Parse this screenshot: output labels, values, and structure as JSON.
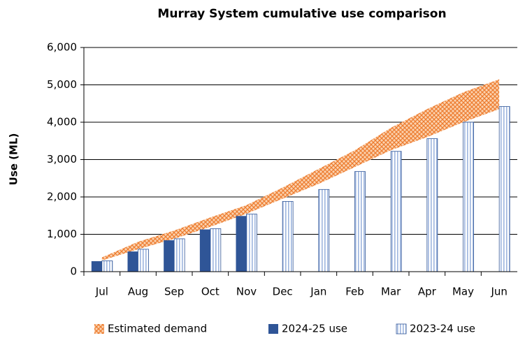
{
  "chart_data": {
    "type": "bar",
    "title": "Murray System cumulative use comparison",
    "y_label": "Use  (ML)",
    "categories": [
      "Jul",
      "Aug",
      "Sep",
      "Oct",
      "Nov",
      "Dec",
      "Jan",
      "Feb",
      "Mar",
      "Apr",
      "May",
      "Jun"
    ],
    "band": {
      "name": "Estimated demand",
      "color": "#f4a460",
      "low": [
        300,
        600,
        880,
        1200,
        1550,
        1950,
        2350,
        2800,
        3250,
        3600,
        4000,
        4350
      ],
      "high": [
        380,
        800,
        1100,
        1450,
        1780,
        2250,
        2750,
        3250,
        3850,
        4350,
        4800,
        5150
      ]
    },
    "series": [
      {
        "name": "2024-25 use",
        "color": "#2f5597",
        "values": [
          280,
          540,
          840,
          1130,
          1490,
          null,
          null,
          null,
          null,
          null,
          null,
          null
        ]
      },
      {
        "name": "2023-24 use",
        "color": "#dae3f3",
        "values": [
          290,
          600,
          880,
          1150,
          1540,
          1880,
          2200,
          2680,
          3220,
          3560,
          4000,
          4420
        ]
      }
    ],
    "ylim": [
      0,
      6000
    ],
    "yticks": [
      0,
      {
        "value": 1000,
        "label": "1,000"
      },
      {
        "value": 2000,
        "label": "2,000"
      },
      {
        "value": 3000,
        "label": "3,000"
      },
      {
        "value": 4000,
        "label": "4,000"
      },
      {
        "value": 5000,
        "label": "5,000"
      },
      {
        "value": 6000,
        "label": "6,000"
      }
    ],
    "grid": true,
    "legend": "bottom"
  }
}
